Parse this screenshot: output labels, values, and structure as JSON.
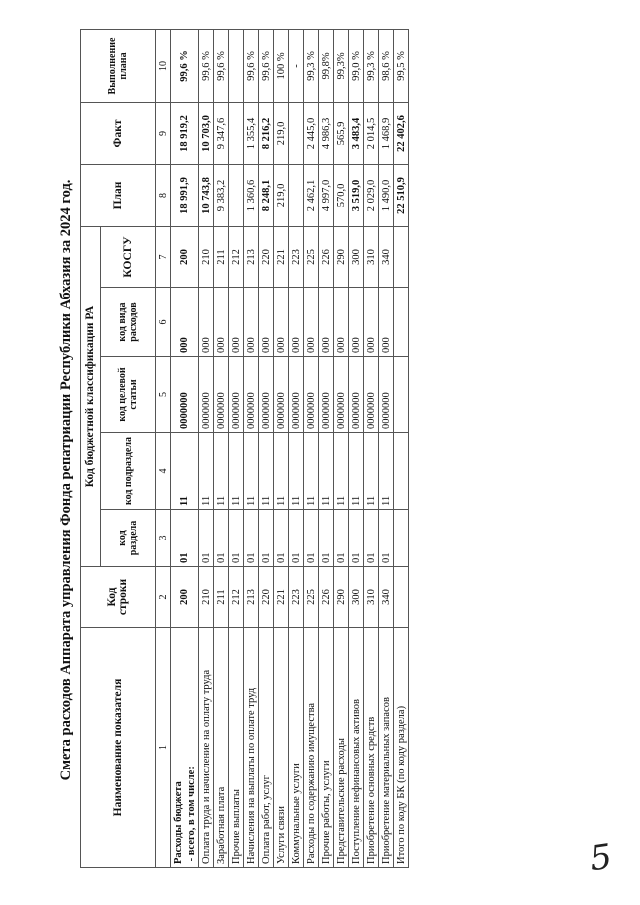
{
  "title": "Смета расходов Аппарата управления Фонда репатриации Республики Абхазия за 2024 год.",
  "headers": {
    "name": "Наименование показателя",
    "row_code": "Код строки",
    "budget_class": "Код бюджетной классификации РА",
    "section_code": "код раздела",
    "subsection_code": "код подраздела",
    "target_code": "код целевой статьи",
    "expense_type_code": "код вида расходов",
    "kosgu": "КОСГУ",
    "plan": "План",
    "fact": "Факт",
    "completion": "Выполнение плана"
  },
  "column_numbers": [
    "1",
    "2",
    "3",
    "4",
    "5",
    "6",
    "7",
    "8",
    "9",
    "10"
  ],
  "rows": [
    {
      "name": "Расходы бюджета\n - всего, в том числе:",
      "row_code": "200",
      "section": "01",
      "subsection": "11",
      "target": "0000000",
      "type": "000",
      "kosgu": "200",
      "plan": "18 991,9",
      "fact": "18 919,2",
      "pct": "99,6 %",
      "bold": true
    },
    {
      "name": "Оплата труда и начисление на оплату труда",
      "row_code": "210",
      "section": "01",
      "subsection": "11",
      "target": "0000000",
      "type": "000",
      "kosgu": "210",
      "plan": "10 743,8",
      "fact": "10 703,0",
      "pct": "99,6 %",
      "bold_values": true
    },
    {
      "name": "Заработная плата",
      "row_code": "211",
      "section": "01",
      "subsection": "11",
      "target": "0000000",
      "type": "000",
      "kosgu": "211",
      "plan": "9 383,2",
      "fact": "9 347,6",
      "pct": "99,6 %"
    },
    {
      "name": "Прочие выплаты",
      "row_code": "212",
      "section": "01",
      "subsection": "11",
      "target": "0000000",
      "type": "000",
      "kosgu": "212",
      "plan": "",
      "fact": "",
      "pct": ""
    },
    {
      "name": "Начисления на выплаты по оплате труд",
      "row_code": "213",
      "section": "01",
      "subsection": "11",
      "target": "0000000",
      "type": "000",
      "kosgu": "213",
      "plan": "1 360,6",
      "fact": "1 355,4",
      "pct": "99,6 %"
    },
    {
      "name": "Оплата работ, услуг",
      "row_code": "220",
      "section": "01",
      "subsection": "11",
      "target": "0000000",
      "type": "000",
      "kosgu": "220",
      "plan": "8 248,1",
      "fact": "8 216,2",
      "pct": "99,6 %",
      "bold_values": true
    },
    {
      "name": "Услуги связи",
      "row_code": "221",
      "section": "01",
      "subsection": "11",
      "target": "0000000",
      "type": "000",
      "kosgu": "221",
      "plan": "219,0",
      "fact": "219,0",
      "pct": "100 %"
    },
    {
      "name": "Коммунальные услуги",
      "row_code": "223",
      "section": "01",
      "subsection": "11",
      "target": "0000000",
      "type": "000",
      "kosgu": "223",
      "plan": "",
      "fact": "",
      "pct": "-"
    },
    {
      "name": "Расходы по содержанию имущества",
      "row_code": "225",
      "section": "01",
      "subsection": "11",
      "target": "0000000",
      "type": "000",
      "kosgu": "225",
      "plan": "2 462,1",
      "fact": "2 445,0",
      "pct": "99,3 %"
    },
    {
      "name": "Прочие работы, услуги",
      "row_code": "226",
      "section": "01",
      "subsection": "11",
      "target": "0000000",
      "type": "000",
      "kosgu": "226",
      "plan": "4 997,0",
      "fact": "4 986,3",
      "pct": "99,8%"
    },
    {
      "name": "Представительские расходы",
      "row_code": "290",
      "section": "01",
      "subsection": "11",
      "target": "0000000",
      "type": "000",
      "kosgu": "290",
      "plan": "570,0",
      "fact": "565,9",
      "pct": "99,3%"
    },
    {
      "name": "Поступление нефинансовых активов",
      "row_code": "300",
      "section": "01",
      "subsection": "11",
      "target": "0000000",
      "type": "000",
      "kosgu": "300",
      "plan": "3 519,0",
      "fact": "3 483,4",
      "pct": "99,0 %",
      "bold_values": true
    },
    {
      "name": "Приобретение основных средств",
      "row_code": "310",
      "section": "01",
      "subsection": "11",
      "target": "0000000",
      "type": "000",
      "kosgu": "310",
      "plan": "2 029,0",
      "fact": "2 014,5",
      "pct": "99,3 %"
    },
    {
      "name": "Приобретение материальных запасов",
      "row_code": "340",
      "section": "01",
      "subsection": "11",
      "target": "0000000",
      "type": "000",
      "kosgu": "340",
      "plan": "1 490,0",
      "fact": "1 468,9",
      "pct": "98,6 %"
    },
    {
      "name": "Итого по коду БК (по коду раздела)",
      "row_code": "",
      "section": "",
      "subsection": "",
      "target": "",
      "type": "",
      "kosgu": "",
      "plan": "22 510,9",
      "fact": "22 402,6",
      "pct": "99,5 %",
      "bold_values": true
    }
  ],
  "page_number": "5"
}
